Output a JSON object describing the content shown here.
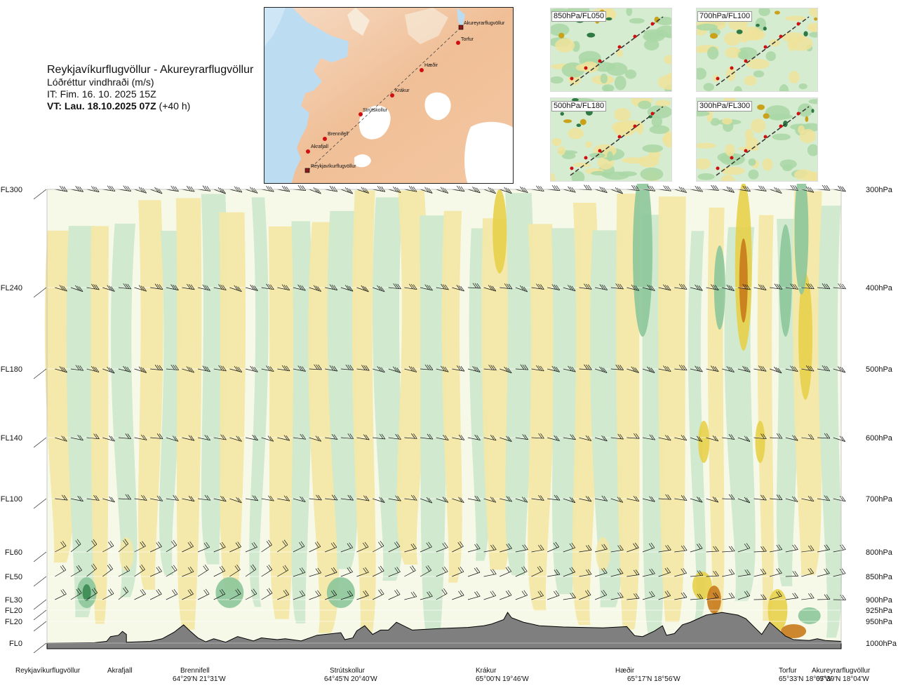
{
  "header": {
    "title": "Reykjavíkurflugvöllur - Akureyrarflugvöllur",
    "subtitle": "Lóðréttur vindhraði (m/s)",
    "issue_time": "IT: Fim. 16. 10. 2025 15Z",
    "valid_time_prefix": "VT: Lau. 18.10.2025 07Z",
    "valid_time_suffix": "(+40 h)"
  },
  "route_map": {
    "waypoints": [
      "Akureyrarflugvöllur",
      "Torfur",
      "Hæðir",
      "Krákur",
      "Strútskollur",
      "Brennifell",
      "Akrafjall",
      "Reykjavíkurflugvöllur"
    ]
  },
  "level_maps": [
    {
      "label": "850hPa/FL050"
    },
    {
      "label": "700hPa/FL100"
    },
    {
      "label": "500hPa/FL180"
    },
    {
      "label": "300hPa/FL300"
    }
  ],
  "chart_data": {
    "type": "heatmap",
    "title": "Lóðréttur vindhraði (m/s)",
    "flight_levels": [
      "FL300",
      "FL240",
      "FL180",
      "FL140",
      "FL100",
      "FL60",
      "FL50",
      "FL30",
      "FL20",
      "FL20",
      "FL0"
    ],
    "pressure_levels": [
      "300hPa",
      "400hPa",
      "500hPa",
      "600hPa",
      "700hPa",
      "800hPa",
      "850hPa",
      "900hPa",
      "925hPa",
      "950hPa",
      "1000hPa"
    ],
    "pressure_values_hPa": [
      300,
      400,
      500,
      600,
      700,
      800,
      850,
      900,
      925,
      950,
      1000
    ],
    "ylim_hPa": [
      1000,
      300
    ],
    "colors": {
      "strong_down": "#3c8a52",
      "down_mid": "#8cc79a",
      "down_light": "#cfe9cd",
      "near_zero": "#f7f9e8",
      "up_light": "#f3e8a6",
      "up_mid": "#e7d04a",
      "strong_up": "#c87a1a",
      "terrain": "#7f7f7f"
    },
    "stations": [
      {
        "name": "Reykjavíkurflugvöllur",
        "coord": "",
        "dist": 0
      },
      {
        "name": "Akrafjall",
        "coord": "",
        "dist": 0.093
      },
      {
        "name": "Brennifell",
        "coord": "64°29'N 21°31'W",
        "dist": 0.188
      },
      {
        "name": "Strútskollur",
        "coord": "64°45'N 20°40'W",
        "dist": 0.4
      },
      {
        "name": "Krákur",
        "coord": "65°00'N 19°46'W",
        "dist": 0.575
      },
      {
        "name": "Hæðir",
        "coord": "65°17'N 18°56'W",
        "dist": 0.74
      },
      {
        "name": "Torfur",
        "coord": "65°33'N 18°07'W",
        "dist": 0.943
      },
      {
        "name": "Akureyrarflugvöllur",
        "coord": "65°39'N 18°04'W",
        "dist": 1.0
      }
    ]
  }
}
